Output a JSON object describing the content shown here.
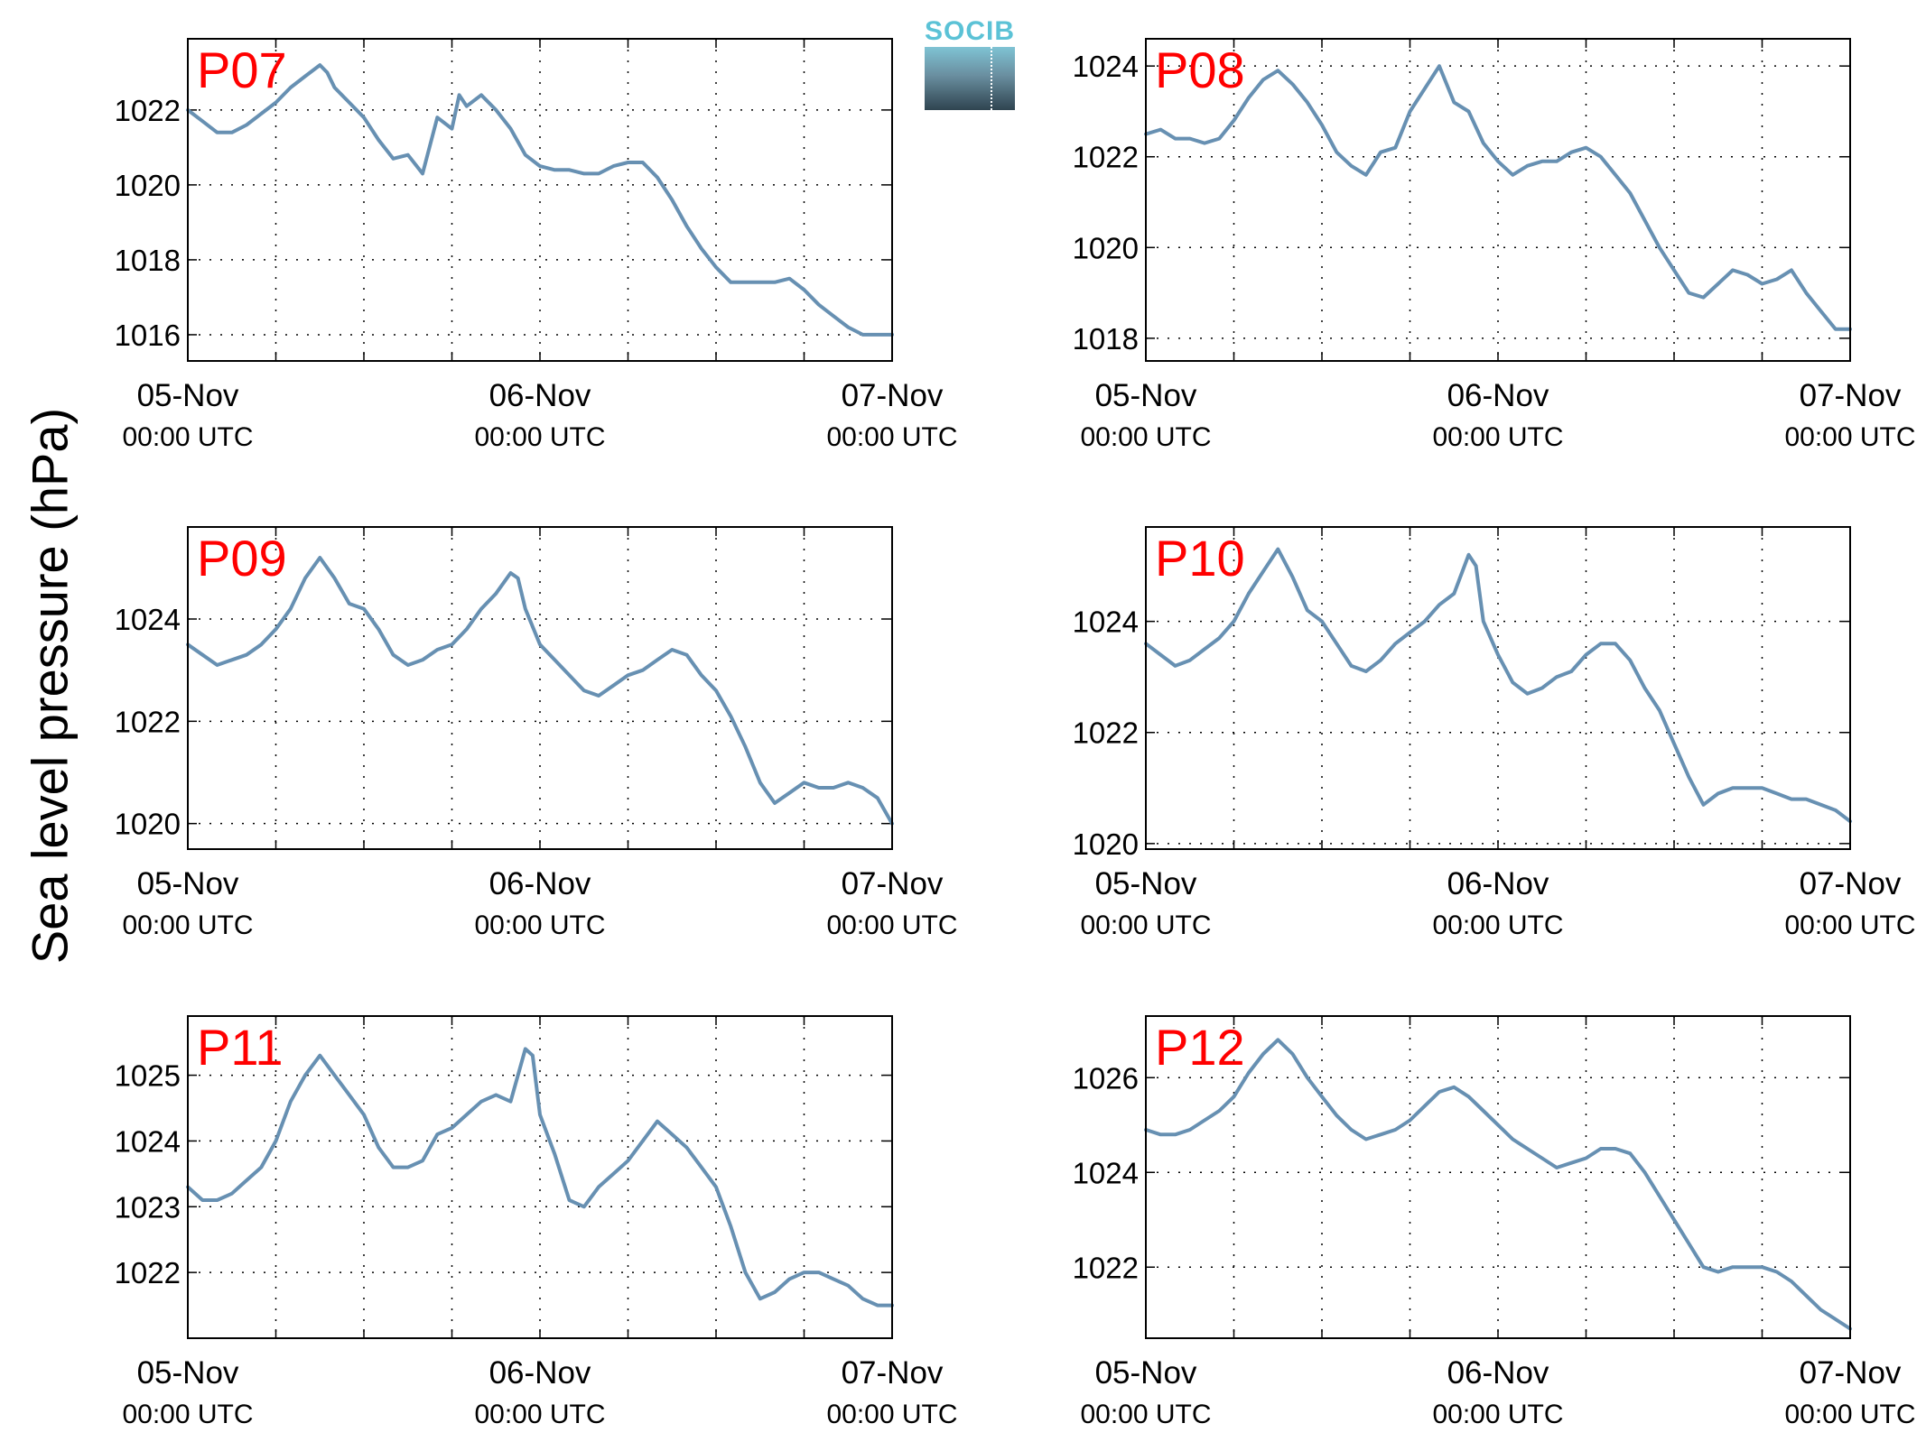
{
  "ylabel": "Sea level pressure (hPa)",
  "logo_text": "SOCIB",
  "line_color": "#6790b2",
  "label_color": "#ff0000",
  "x_ticks": [
    {
      "date": "05-Nov",
      "time": "00:00 UTC"
    },
    {
      "date": "06-Nov",
      "time": "00:00 UTC"
    },
    {
      "date": "07-Nov",
      "time": "00:00 UTC"
    }
  ],
  "chart_data": [
    {
      "type": "line",
      "name": "P07",
      "xlim": [
        0,
        48
      ],
      "ylim": [
        1015.3,
        1023.9
      ],
      "yticks": [
        1016,
        1018,
        1020,
        1022
      ],
      "series": [
        {
          "x": [
            0,
            1,
            2,
            3,
            4,
            5,
            6,
            7,
            8,
            9,
            9.5,
            10,
            11,
            12,
            13,
            14,
            15,
            16,
            17,
            18,
            18.5,
            19,
            20,
            21,
            22,
            23,
            24,
            25,
            26,
            27,
            28,
            29,
            30,
            31,
            32,
            33,
            34,
            35,
            36,
            37,
            38,
            39,
            40,
            41,
            42,
            43,
            44,
            45,
            46,
            47,
            48
          ],
          "y": [
            1022.0,
            1021.7,
            1021.4,
            1021.4,
            1021.6,
            1021.9,
            1022.2,
            1022.6,
            1022.9,
            1023.2,
            1023.0,
            1022.6,
            1022.2,
            1021.8,
            1021.2,
            1020.7,
            1020.8,
            1020.3,
            1021.8,
            1021.5,
            1022.4,
            1022.1,
            1022.4,
            1022.0,
            1021.5,
            1020.8,
            1020.5,
            1020.4,
            1020.4,
            1020.3,
            1020.3,
            1020.5,
            1020.6,
            1020.6,
            1020.2,
            1019.6,
            1018.9,
            1018.3,
            1017.8,
            1017.4,
            1017.4,
            1017.4,
            1017.4,
            1017.5,
            1017.2,
            1016.8,
            1016.5,
            1016.2,
            1016.0,
            1016.0,
            1016.0
          ]
        }
      ]
    },
    {
      "type": "line",
      "name": "P08",
      "xlim": [
        0,
        48
      ],
      "ylim": [
        1017.5,
        1024.6
      ],
      "yticks": [
        1018,
        1020,
        1022,
        1024
      ],
      "series": [
        {
          "x": [
            0,
            1,
            2,
            3,
            4,
            5,
            6,
            7,
            8,
            9,
            10,
            11,
            12,
            13,
            14,
            15,
            16,
            17,
            18,
            19,
            20,
            21,
            22,
            23,
            24,
            25,
            26,
            27,
            28,
            29,
            30,
            31,
            32,
            33,
            34,
            35,
            36,
            37,
            38,
            39,
            40,
            41,
            42,
            43,
            44,
            45,
            46,
            47,
            48
          ],
          "y": [
            1022.5,
            1022.6,
            1022.4,
            1022.4,
            1022.3,
            1022.4,
            1022.8,
            1023.3,
            1023.7,
            1023.9,
            1023.6,
            1023.2,
            1022.7,
            1022.1,
            1021.8,
            1021.6,
            1022.1,
            1022.2,
            1023.0,
            1023.5,
            1024.0,
            1023.2,
            1023.0,
            1022.3,
            1021.9,
            1021.6,
            1021.8,
            1021.9,
            1021.9,
            1022.1,
            1022.2,
            1022.0,
            1021.6,
            1021.2,
            1020.6,
            1020.0,
            1019.5,
            1019.0,
            1018.9,
            1019.2,
            1019.5,
            1019.4,
            1019.2,
            1019.3,
            1019.5,
            1019.0,
            1018.6,
            1018.2,
            1018.2
          ]
        }
      ]
    },
    {
      "type": "line",
      "name": "P09",
      "xlim": [
        0,
        48
      ],
      "ylim": [
        1019.5,
        1025.8
      ],
      "yticks": [
        1020,
        1022,
        1024
      ],
      "series": [
        {
          "x": [
            0,
            1,
            2,
            3,
            4,
            5,
            6,
            7,
            8,
            9,
            10,
            11,
            12,
            13,
            14,
            15,
            16,
            17,
            18,
            19,
            20,
            21,
            22,
            22.5,
            23,
            24,
            25,
            26,
            27,
            28,
            29,
            30,
            31,
            32,
            33,
            34,
            35,
            36,
            37,
            38,
            39,
            40,
            41,
            42,
            43,
            44,
            45,
            46,
            47,
            48
          ],
          "y": [
            1023.5,
            1023.3,
            1023.1,
            1023.2,
            1023.3,
            1023.5,
            1023.8,
            1024.2,
            1024.8,
            1025.2,
            1024.8,
            1024.3,
            1024.2,
            1023.8,
            1023.3,
            1023.1,
            1023.2,
            1023.4,
            1023.5,
            1023.8,
            1024.2,
            1024.5,
            1024.9,
            1024.8,
            1024.2,
            1023.5,
            1023.2,
            1022.9,
            1022.6,
            1022.5,
            1022.7,
            1022.9,
            1023.0,
            1023.2,
            1023.4,
            1023.3,
            1022.9,
            1022.6,
            1022.1,
            1021.5,
            1020.8,
            1020.4,
            1020.6,
            1020.8,
            1020.7,
            1020.7,
            1020.8,
            1020.7,
            1020.5,
            1020.0
          ]
        }
      ]
    },
    {
      "type": "line",
      "name": "P10",
      "xlim": [
        0,
        48
      ],
      "ylim": [
        1019.9,
        1025.7
      ],
      "yticks": [
        1020,
        1022,
        1024
      ],
      "series": [
        {
          "x": [
            0,
            1,
            2,
            3,
            4,
            5,
            6,
            7,
            8,
            9,
            10,
            11,
            12,
            13,
            14,
            15,
            16,
            17,
            18,
            19,
            20,
            21,
            22,
            22.5,
            23,
            24,
            25,
            26,
            27,
            28,
            29,
            30,
            31,
            32,
            33,
            34,
            35,
            36,
            37,
            38,
            39,
            40,
            41,
            42,
            43,
            44,
            45,
            46,
            47,
            48
          ],
          "y": [
            1023.6,
            1023.4,
            1023.2,
            1023.3,
            1023.5,
            1023.7,
            1024.0,
            1024.5,
            1024.9,
            1025.3,
            1024.8,
            1024.2,
            1024.0,
            1023.6,
            1023.2,
            1023.1,
            1023.3,
            1023.6,
            1023.8,
            1024.0,
            1024.3,
            1024.5,
            1025.2,
            1025.0,
            1024.0,
            1023.4,
            1022.9,
            1022.7,
            1022.8,
            1023.0,
            1023.1,
            1023.4,
            1023.6,
            1023.6,
            1023.3,
            1022.8,
            1022.4,
            1021.8,
            1021.2,
            1020.7,
            1020.9,
            1021.0,
            1021.0,
            1021.0,
            1020.9,
            1020.8,
            1020.8,
            1020.7,
            1020.6,
            1020.4
          ]
        }
      ]
    },
    {
      "type": "line",
      "name": "P11",
      "xlim": [
        0,
        48
      ],
      "ylim": [
        1021.0,
        1025.9
      ],
      "yticks": [
        1022,
        1023,
        1024,
        1025
      ],
      "series": [
        {
          "x": [
            0,
            1,
            2,
            3,
            4,
            5,
            6,
            7,
            8,
            9,
            10,
            11,
            12,
            13,
            14,
            15,
            16,
            17,
            18,
            19,
            20,
            21,
            22,
            23,
            23.5,
            24,
            25,
            26,
            27,
            28,
            29,
            30,
            31,
            32,
            33,
            34,
            35,
            36,
            37,
            38,
            39,
            40,
            41,
            42,
            43,
            44,
            45,
            46,
            47,
            48
          ],
          "y": [
            1023.3,
            1023.1,
            1023.1,
            1023.2,
            1023.4,
            1023.6,
            1024.0,
            1024.6,
            1025.0,
            1025.3,
            1025.0,
            1024.7,
            1024.4,
            1023.9,
            1023.6,
            1023.6,
            1023.7,
            1024.1,
            1024.2,
            1024.4,
            1024.6,
            1024.7,
            1024.6,
            1025.4,
            1025.3,
            1024.4,
            1023.8,
            1023.1,
            1023.0,
            1023.3,
            1023.5,
            1023.7,
            1024.0,
            1024.3,
            1024.1,
            1023.9,
            1023.6,
            1023.3,
            1022.7,
            1022.0,
            1021.6,
            1021.7,
            1021.9,
            1022.0,
            1022.0,
            1021.9,
            1021.8,
            1021.6,
            1021.5,
            1021.5
          ]
        }
      ]
    },
    {
      "type": "line",
      "name": "P12",
      "xlim": [
        0,
        48
      ],
      "ylim": [
        1020.5,
        1027.3
      ],
      "yticks": [
        1022,
        1024,
        1026
      ],
      "series": [
        {
          "x": [
            0,
            1,
            2,
            3,
            4,
            5,
            6,
            7,
            8,
            9,
            10,
            11,
            12,
            13,
            14,
            15,
            16,
            17,
            18,
            19,
            20,
            21,
            22,
            23,
            24,
            25,
            26,
            27,
            28,
            29,
            30,
            31,
            32,
            33,
            34,
            35,
            36,
            37,
            38,
            39,
            40,
            41,
            42,
            43,
            44,
            45,
            46,
            47,
            48
          ],
          "y": [
            1024.9,
            1024.8,
            1024.8,
            1024.9,
            1025.1,
            1025.3,
            1025.6,
            1026.1,
            1026.5,
            1026.8,
            1026.5,
            1026.0,
            1025.6,
            1025.2,
            1024.9,
            1024.7,
            1024.8,
            1024.9,
            1025.1,
            1025.4,
            1025.7,
            1025.8,
            1025.6,
            1025.3,
            1025.0,
            1024.7,
            1024.5,
            1024.3,
            1024.1,
            1024.2,
            1024.3,
            1024.5,
            1024.5,
            1024.4,
            1024.0,
            1023.5,
            1023.0,
            1022.5,
            1022.0,
            1021.9,
            1022.0,
            1022.0,
            1022.0,
            1021.9,
            1021.7,
            1021.4,
            1021.1,
            1020.9,
            1020.7
          ]
        }
      ]
    }
  ]
}
